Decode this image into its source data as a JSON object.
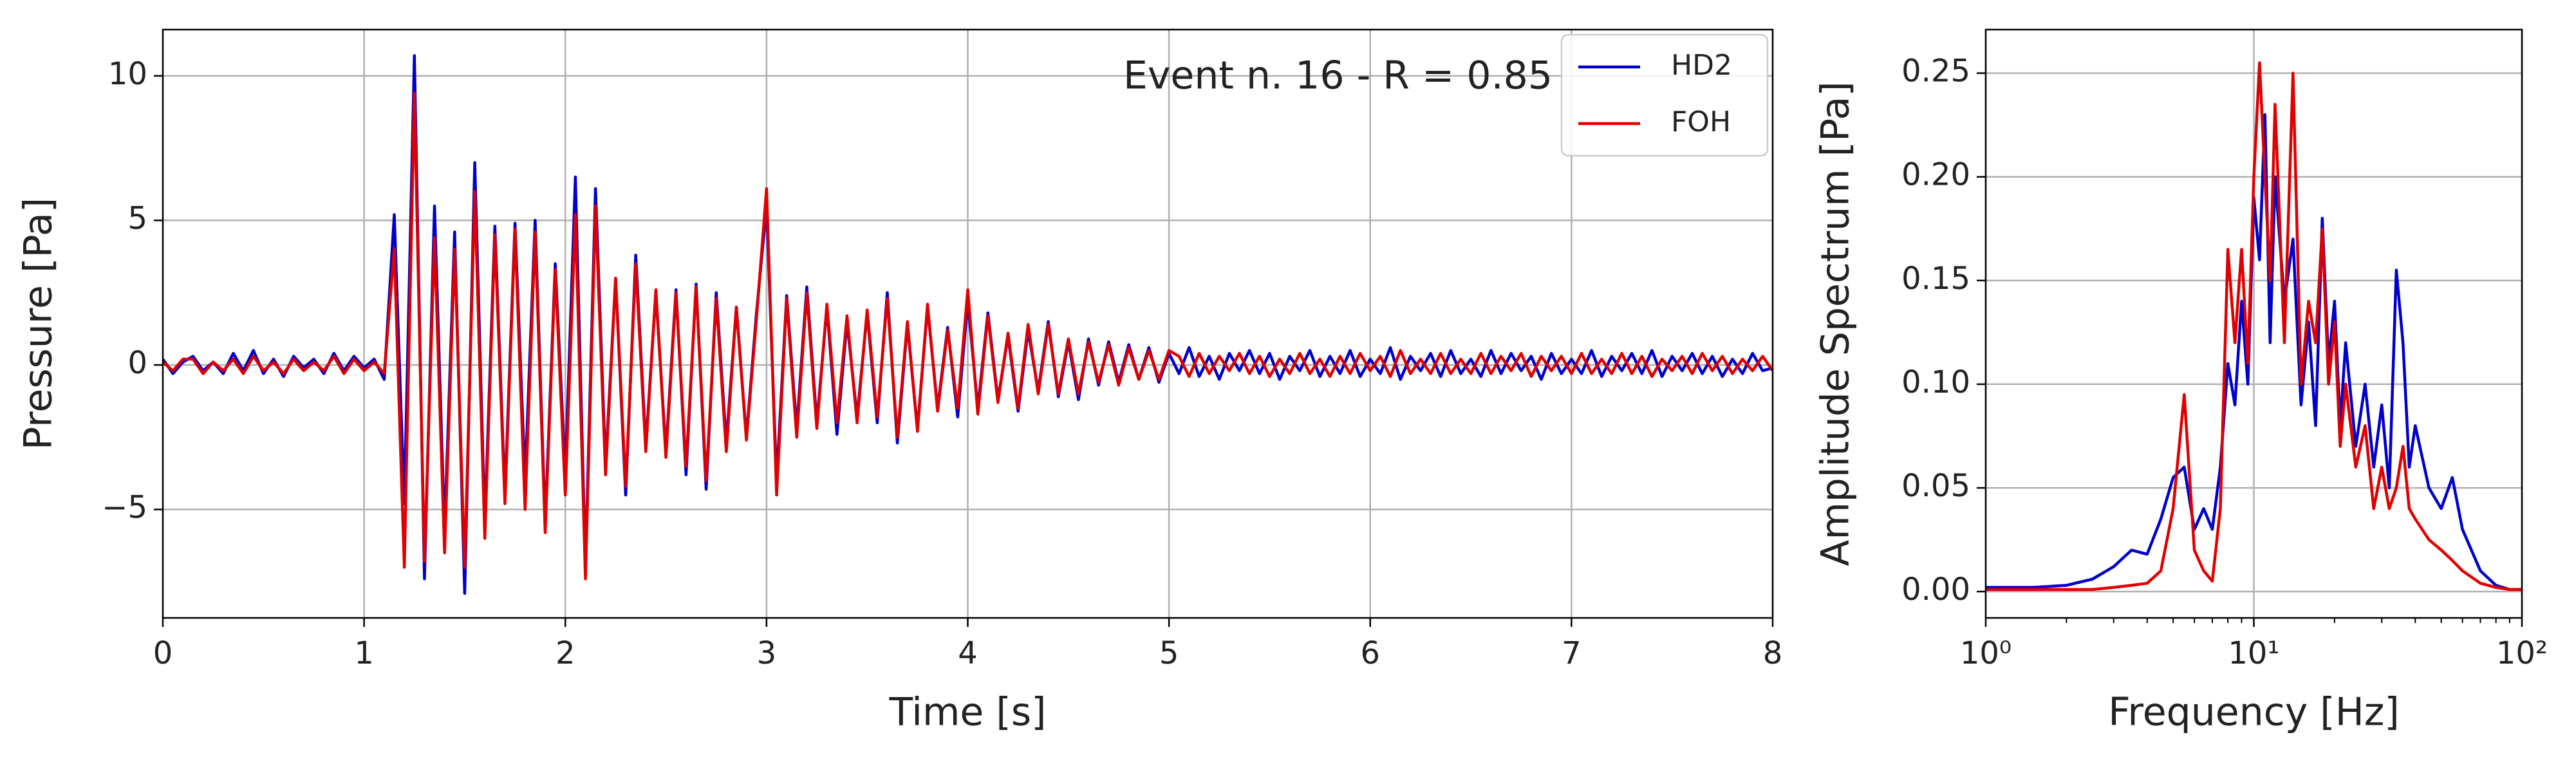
{
  "chart_data": [
    {
      "type": "line",
      "annotation": "Event n. 16 - R = 0.85",
      "xlabel": "Time [s]",
      "ylabel": "Pressure [Pa]",
      "xlim": [
        0,
        8
      ],
      "ylim": [
        -8.75,
        11.6
      ],
      "xticks": [
        0,
        1,
        2,
        3,
        4,
        5,
        6,
        7,
        8
      ],
      "yticks": [
        {
          "value": -5,
          "label": "−5"
        },
        0,
        5,
        10
      ],
      "grid": true,
      "legend": "upper right",
      "x": [
        0,
        0.05,
        0.1,
        0.15,
        0.2,
        0.25,
        0.3,
        0.35,
        0.4,
        0.45,
        0.5,
        0.55,
        0.6,
        0.65,
        0.7,
        0.75,
        0.8,
        0.85,
        0.9,
        0.95,
        1,
        1.05,
        1.1,
        1.15,
        1.2,
        1.25,
        1.3,
        1.35,
        1.4,
        1.45,
        1.5,
        1.55,
        1.6,
        1.65,
        1.7,
        1.75,
        1.8,
        1.85,
        1.9,
        1.95,
        2,
        2.05,
        2.1,
        2.15,
        2.2,
        2.25,
        2.3,
        2.35,
        2.4,
        2.45,
        2.5,
        2.55,
        2.6,
        2.65,
        2.7,
        2.75,
        2.8,
        2.85,
        2.9,
        2.95,
        3,
        3.05,
        3.1,
        3.15,
        3.2,
        3.25,
        3.3,
        3.35,
        3.4,
        3.45,
        3.5,
        3.55,
        3.6,
        3.65,
        3.7,
        3.75,
        3.8,
        3.85,
        3.9,
        3.95,
        4,
        4.05,
        4.1,
        4.15,
        4.2,
        4.25,
        4.3,
        4.35,
        4.4,
        4.45,
        4.5,
        4.55,
        4.6,
        4.65,
        4.7,
        4.75,
        4.8,
        4.85,
        4.9,
        4.95,
        5,
        5.05,
        5.1,
        5.15,
        5.2,
        5.25,
        5.3,
        5.35,
        5.4,
        5.45,
        5.5,
        5.55,
        5.6,
        5.65,
        5.7,
        5.75,
        5.8,
        5.85,
        5.9,
        5.95,
        6,
        6.05,
        6.1,
        6.15,
        6.2,
        6.25,
        6.3,
        6.35,
        6.4,
        6.45,
        6.5,
        6.55,
        6.6,
        6.65,
        6.7,
        6.75,
        6.8,
        6.85,
        6.9,
        6.95,
        7,
        7.05,
        7.1,
        7.15,
        7.2,
        7.25,
        7.3,
        7.35,
        7.4,
        7.45,
        7.5,
        7.55,
        7.6,
        7.65,
        7.7,
        7.75,
        7.8,
        7.85,
        7.9,
        7.95,
        8
      ],
      "series": [
        {
          "name": "HD2",
          "color": "#0000cc",
          "values": [
            0.2,
            -0.3,
            0.1,
            0.3,
            -0.2,
            0.1,
            -0.3,
            0.4,
            -0.2,
            0.5,
            -0.3,
            0.2,
            -0.4,
            0.3,
            -0.1,
            0.2,
            -0.3,
            0.4,
            -0.2,
            0.3,
            -0.1,
            0.2,
            -0.5,
            5.2,
            -4.8,
            10.7,
            -7.4,
            5.5,
            -5.8,
            4.6,
            -7.9,
            7.0,
            -5.5,
            4.8,
            -4.5,
            4.9,
            -4.0,
            5.0,
            -5.5,
            3.5,
            -3.8,
            6.5,
            -7.0,
            6.1,
            -3.5,
            3.0,
            -4.5,
            3.8,
            -2.8,
            2.5,
            -3.0,
            2.6,
            -3.8,
            2.8,
            -4.3,
            2.5,
            -2.7,
            2.0,
            -2.5,
            1.8,
            5.5,
            -4.0,
            2.4,
            -2.2,
            2.7,
            -2.0,
            2.0,
            -2.4,
            1.5,
            -1.8,
            1.8,
            -2.0,
            2.5,
            -2.7,
            1.4,
            -2.2,
            2.0,
            -1.5,
            1.3,
            -1.8,
            2.2,
            -1.5,
            1.8,
            -1.2,
            1.0,
            -1.6,
            1.2,
            -0.9,
            1.5,
            -1.1,
            0.8,
            -1.2,
            0.9,
            -0.7,
            0.8,
            -0.6,
            0.7,
            -0.5,
            0.6,
            -0.6,
            0.4,
            -0.3,
            0.6,
            -0.4,
            0.3,
            -0.5,
            0.4,
            -0.2,
            0.5,
            -0.3,
            0.4,
            -0.5,
            0.3,
            -0.2,
            0.5,
            -0.4,
            0.3,
            -0.3,
            0.5,
            -0.4,
            0.2,
            -0.3,
            0.6,
            -0.5,
            0.3,
            -0.2,
            0.4,
            -0.4,
            0.5,
            -0.3,
            0.2,
            -0.4,
            0.5,
            -0.3,
            0.4,
            -0.2,
            0.3,
            -0.5,
            0.4,
            -0.3,
            0.2,
            -0.3,
            0.5,
            -0.4,
            0.3,
            -0.2,
            0.4,
            -0.3,
            0.5,
            -0.4,
            0.3,
            -0.2,
            0.4,
            -0.3,
            0.3,
            -0.4,
            0.2,
            -0.3,
            0.4,
            -0.2,
            -0.1
          ]
        },
        {
          "name": "FOH",
          "color": "#e00000",
          "values": [
            0.1,
            -0.2,
            0.2,
            0.2,
            -0.3,
            0.1,
            -0.2,
            0.2,
            -0.3,
            0.3,
            -0.2,
            0.1,
            -0.3,
            0.2,
            -0.2,
            0.1,
            -0.2,
            0.3,
            -0.3,
            0.2,
            -0.2,
            0.1,
            -0.3,
            4.0,
            -7.0,
            9.4,
            -6.8,
            4.4,
            -6.5,
            4.0,
            -7.0,
            6.0,
            -6.0,
            4.5,
            -4.8,
            4.7,
            -5.0,
            4.6,
            -5.8,
            3.3,
            -4.5,
            5.2,
            -7.4,
            5.5,
            -3.8,
            3.0,
            -4.2,
            3.5,
            -3.0,
            2.6,
            -3.2,
            2.5,
            -3.5,
            2.7,
            -4.0,
            2.3,
            -3.0,
            2.0,
            -2.6,
            1.6,
            6.1,
            -4.5,
            2.3,
            -2.5,
            2.5,
            -2.2,
            2.1,
            -2.0,
            1.7,
            -2.0,
            1.9,
            -1.8,
            2.3,
            -2.5,
            1.5,
            -2.3,
            2.1,
            -1.6,
            1.2,
            -1.5,
            2.6,
            -1.7,
            1.7,
            -1.3,
            1.1,
            -1.5,
            1.4,
            -1.0,
            1.4,
            -1.0,
            0.9,
            -1.0,
            0.8,
            -0.6,
            0.7,
            -0.7,
            0.6,
            -0.5,
            0.5,
            -0.5,
            0.5,
            0.3,
            -0.4,
            0.4,
            -0.3,
            0.3,
            -0.2,
            0.4,
            -0.3,
            0.3,
            -0.4,
            0.2,
            -0.3,
            0.4,
            -0.3,
            0.2,
            -0.4,
            0.3,
            -0.3,
            0.4,
            -0.2,
            0.3,
            -0.4,
            0.5,
            -0.3,
            0.2,
            -0.3,
            0.4,
            -0.3,
            0.2,
            -0.3,
            0.4,
            -0.3,
            0.3,
            -0.2,
            0.4,
            -0.4,
            0.3,
            -0.2,
            0.3,
            -0.3,
            0.4,
            -0.3,
            0.2,
            -0.3,
            0.4,
            -0.3,
            0.3,
            -0.4,
            0.2,
            -0.2,
            0.3,
            -0.3,
            0.4,
            -0.2,
            0.3,
            -0.3,
            0.2,
            -0.2,
            0.3,
            -0.2
          ]
        }
      ]
    },
    {
      "type": "line",
      "xlabel": "Frequency [Hz]",
      "ylabel": "Amplitude Spectrum [Pa]",
      "xscale": "log",
      "xlim": [
        1,
        100
      ],
      "ylim": [
        -0.0127,
        0.271
      ],
      "xticks": [
        {
          "value": 1,
          "label": "10⁰"
        },
        {
          "value": 10,
          "label": "10¹"
        },
        {
          "value": 100,
          "label": "10²"
        }
      ],
      "yticks": [
        {
          "value": 0,
          "label": "0.00"
        },
        0.05,
        {
          "value": 0.1,
          "label": "0.10"
        },
        0.15,
        {
          "value": 0.2,
          "label": "0.20"
        },
        0.25
      ],
      "grid": true,
      "x": [
        1,
        1.5,
        2,
        2.5,
        3,
        3.5,
        4,
        4.5,
        5,
        5.5,
        6,
        6.5,
        7,
        7.5,
        8,
        8.5,
        9,
        9.5,
        10,
        10.5,
        11,
        11.5,
        12,
        13,
        14,
        15,
        16,
        17,
        18,
        19,
        20,
        21,
        22,
        24,
        26,
        28,
        30,
        32,
        34,
        36,
        38,
        40,
        45,
        50,
        55,
        60,
        70,
        80,
        90,
        100
      ],
      "series": [
        {
          "name": "HD2",
          "color": "#0000cc",
          "values": [
            0.002,
            0.002,
            0.003,
            0.006,
            0.012,
            0.02,
            0.018,
            0.035,
            0.055,
            0.06,
            0.03,
            0.04,
            0.03,
            0.06,
            0.11,
            0.09,
            0.14,
            0.1,
            0.19,
            0.16,
            0.23,
            0.12,
            0.2,
            0.14,
            0.17,
            0.09,
            0.13,
            0.08,
            0.18,
            0.11,
            0.14,
            0.08,
            0.12,
            0.07,
            0.1,
            0.06,
            0.09,
            0.05,
            0.155,
            0.12,
            0.06,
            0.08,
            0.05,
            0.04,
            0.055,
            0.03,
            0.01,
            0.003,
            0.001,
            0.001
          ]
        },
        {
          "name": "FOH",
          "color": "#e00000",
          "values": [
            0.001,
            0.001,
            0.001,
            0.001,
            0.002,
            0.003,
            0.004,
            0.01,
            0.04,
            0.095,
            0.02,
            0.01,
            0.005,
            0.04,
            0.165,
            0.12,
            0.165,
            0.11,
            0.2,
            0.255,
            0.2,
            0.15,
            0.235,
            0.12,
            0.25,
            0.1,
            0.14,
            0.12,
            0.175,
            0.1,
            0.13,
            0.07,
            0.1,
            0.06,
            0.08,
            0.04,
            0.06,
            0.04,
            0.05,
            0.07,
            0.04,
            0.035,
            0.025,
            0.02,
            0.015,
            0.01,
            0.004,
            0.002,
            0.001,
            0.001
          ]
        }
      ]
    }
  ]
}
